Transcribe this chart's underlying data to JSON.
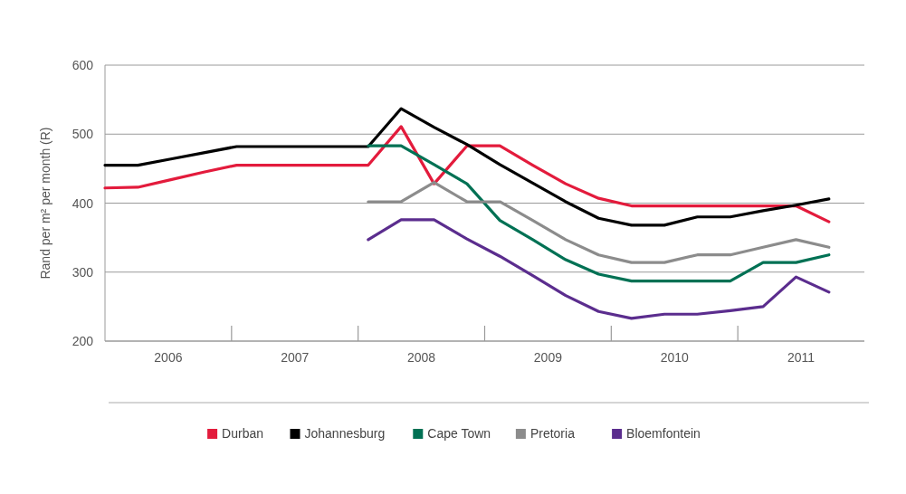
{
  "chart_data": {
    "type": "line",
    "ylabel": "Rand per m² per month (R)",
    "x": [
      2006,
      2006.26,
      2006.52,
      2006.78,
      2007.04,
      2007.3,
      2007.56,
      2007.82,
      2008.08,
      2008.34,
      2008.6,
      2008.86,
      2009.12,
      2009.38,
      2009.64,
      2009.9,
      2010.16,
      2010.42,
      2010.68,
      2010.94,
      2011.2,
      2011.46,
      2011.72
    ],
    "xlim": [
      2006,
      2012
    ],
    "xticks": [
      {
        "value": 2006.5,
        "label": "2006"
      },
      {
        "value": 2007.5,
        "label": "2007"
      },
      {
        "value": 2008.5,
        "label": "2008"
      },
      {
        "value": 2009.5,
        "label": "2009"
      },
      {
        "value": 2010.5,
        "label": "2010"
      },
      {
        "value": 2011.5,
        "label": "2011"
      }
    ],
    "ylim": [
      200,
      600
    ],
    "yticks": [
      200,
      300,
      400,
      500,
      600
    ],
    "grid": "y",
    "legend": "bottom",
    "line_style": "solid",
    "marker": "none",
    "series": [
      {
        "name": "Durban",
        "color": "#e31b3c",
        "values": [
          422,
          423,
          434,
          445,
          455,
          455,
          455,
          455,
          455,
          511,
          428,
          483,
          483,
          455,
          428,
          407,
          396,
          396,
          396,
          396,
          396,
          396,
          373
        ]
      },
      {
        "name": "Johannesburg",
        "color": "#000000",
        "values": [
          455,
          455,
          464,
          473,
          482,
          482,
          482,
          482,
          482,
          537,
          510,
          485,
          456,
          429,
          402,
          378,
          368,
          368,
          380,
          380,
          389,
          397,
          406
        ]
      },
      {
        "name": "Cape Town",
        "color": "#007154",
        "values": [
          null,
          null,
          null,
          null,
          null,
          null,
          null,
          null,
          483,
          483,
          456,
          428,
          375,
          347,
          318,
          297,
          287,
          287,
          287,
          287,
          314,
          314,
          325
        ]
      },
      {
        "name": "Pretoria",
        "color": "#8c8c8c",
        "values": [
          null,
          null,
          null,
          null,
          null,
          null,
          null,
          null,
          402,
          402,
          430,
          402,
          402,
          375,
          347,
          325,
          314,
          314,
          325,
          325,
          336,
          347,
          336
        ]
      },
      {
        "name": "Bloemfontein",
        "color": "#5b2d8e",
        "values": [
          null,
          null,
          null,
          null,
          null,
          null,
          null,
          null,
          347,
          376,
          376,
          348,
          323,
          295,
          266,
          243,
          233,
          239,
          239,
          244,
          250,
          293,
          271
        ]
      }
    ]
  }
}
